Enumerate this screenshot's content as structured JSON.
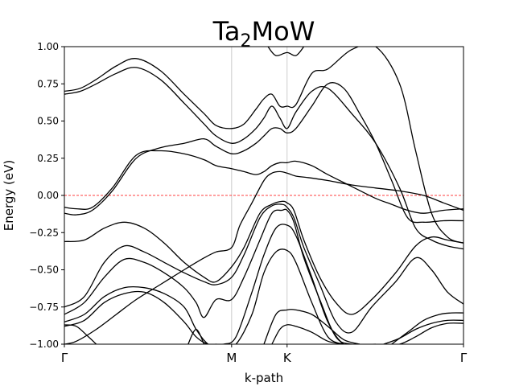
{
  "chart_data": {
    "type": "line",
    "title_main": "Ta",
    "title_sub": "2",
    "title_rest": "MoW",
    "xlabel": "k-path",
    "ylabel": "Energy (eV)",
    "ylim": [
      -1.0,
      1.0
    ],
    "yticks": [
      -1.0,
      -0.75,
      -0.5,
      -0.25,
      0.0,
      0.25,
      0.5,
      0.75,
      1.0
    ],
    "ytick_labels": [
      "−1.00",
      "−0.75",
      "−0.50",
      "−0.25",
      "0.00",
      "0.25",
      "0.50",
      "0.75",
      "1.00"
    ],
    "xlim": [
      0.0,
      1.0
    ],
    "high_symmetry_points": [
      {
        "label": "Γ",
        "x": 0.0
      },
      {
        "label": "M",
        "x": 0.419
      },
      {
        "label": "K",
        "x": 0.558
      },
      {
        "label": "Γ",
        "x": 1.0
      }
    ],
    "fermi_level": 0.0,
    "fermi_color": "#ff0000",
    "vline_color": "#cccccc",
    "band_color": "#000000",
    "series": [
      {
        "name": "band-1",
        "x": [
          0,
          0.03,
          0.08,
          0.13,
          0.18,
          0.24,
          0.3,
          0.35,
          0.38,
          0.419,
          0.44,
          0.47,
          0.5,
          0.52,
          0.54,
          0.558,
          0.58,
          0.61,
          0.66,
          0.72,
          0.78,
          0.84,
          0.9,
          0.95,
          1.0
        ],
        "y": [
          -1.0,
          -0.98,
          -0.9,
          -0.8,
          -0.7,
          -0.6,
          -0.5,
          -0.42,
          -0.38,
          -0.35,
          -0.2,
          -0.05,
          0.1,
          0.15,
          0.16,
          0.15,
          0.13,
          0.12,
          0.1,
          0.07,
          0.05,
          0.03,
          0.0,
          -0.05,
          -0.1
        ]
      },
      {
        "name": "band-2",
        "x": [
          0,
          0.03,
          0.07,
          0.12,
          0.18,
          0.24,
          0.3,
          0.35,
          0.38,
          0.419,
          0.45,
          0.48,
          0.5,
          0.52,
          0.54,
          0.558,
          0.58,
          0.62,
          0.66,
          0.72,
          0.78,
          0.82,
          0.86,
          0.9,
          0.95,
          1.0
        ],
        "y": [
          -0.08,
          -0.09,
          -0.08,
          0.05,
          0.27,
          0.3,
          0.28,
          0.24,
          0.2,
          0.18,
          0.16,
          0.14,
          0.16,
          0.2,
          0.22,
          0.22,
          0.23,
          0.2,
          0.14,
          0.06,
          -0.02,
          -0.06,
          -0.1,
          -0.12,
          -0.1,
          -0.09
        ]
      },
      {
        "name": "band-3",
        "x": [
          0,
          0.03,
          0.07,
          0.12,
          0.18,
          0.24,
          0.3,
          0.35,
          0.38,
          0.419,
          0.45,
          0.48,
          0.5,
          0.52,
          0.54,
          0.558,
          0.58,
          0.62,
          0.66,
          0.7,
          0.74,
          0.78,
          0.82,
          0.86,
          0.9,
          0.95,
          1.0
        ],
        "y": [
          -0.12,
          -0.13,
          -0.1,
          0.03,
          0.25,
          0.32,
          0.35,
          0.38,
          0.33,
          0.28,
          0.3,
          0.35,
          0.4,
          0.45,
          0.45,
          0.42,
          0.45,
          0.6,
          0.75,
          0.72,
          0.55,
          0.35,
          0.1,
          -0.15,
          -0.18,
          -0.17,
          -0.17
        ]
      },
      {
        "name": "band-4",
        "x": [
          0,
          0.04,
          0.08,
          0.13,
          0.18,
          0.24,
          0.3,
          0.35,
          0.38,
          0.419,
          0.45,
          0.48,
          0.5,
          0.52,
          0.54,
          0.558,
          0.58,
          0.62,
          0.66,
          0.72,
          0.78,
          0.84,
          0.88,
          0.92,
          0.96,
          1.0
        ],
        "y": [
          0.68,
          0.7,
          0.75,
          0.82,
          0.86,
          0.78,
          0.62,
          0.48,
          0.4,
          0.35,
          0.38,
          0.45,
          0.52,
          0.6,
          0.52,
          0.45,
          0.56,
          0.7,
          0.72,
          0.55,
          0.35,
          0.05,
          -0.22,
          -0.3,
          -0.34,
          -0.36
        ]
      },
      {
        "name": "band-5",
        "x": [
          0,
          0.04,
          0.08,
          0.13,
          0.18,
          0.24,
          0.3,
          0.35,
          0.38,
          0.419,
          0.45,
          0.48,
          0.5,
          0.52,
          0.54,
          0.558,
          0.58,
          0.62,
          0.66,
          0.72,
          0.78,
          0.84,
          0.88,
          0.92,
          0.96,
          1.0
        ],
        "y": [
          0.7,
          0.72,
          0.78,
          0.87,
          0.92,
          0.84,
          0.68,
          0.55,
          0.47,
          0.45,
          0.48,
          0.58,
          0.65,
          0.68,
          0.6,
          0.6,
          0.61,
          0.82,
          0.85,
          0.98,
          1.0,
          0.75,
          0.3,
          -0.12,
          -0.28,
          -0.32
        ]
      },
      {
        "name": "band-6",
        "x": [
          0,
          0.05,
          0.1,
          0.15,
          0.2,
          0.25,
          0.3,
          0.35,
          0.38,
          0.419,
          0.45,
          0.49,
          0.52,
          0.545,
          0.558,
          0.575,
          0.6,
          0.64,
          0.68,
          0.72,
          0.77,
          0.83,
          0.88,
          0.92,
          0.96,
          1.0
        ],
        "y": [
          -0.31,
          -0.3,
          -0.22,
          -0.18,
          -0.22,
          -0.32,
          -0.45,
          -0.55,
          -0.58,
          -0.48,
          -0.35,
          -0.12,
          -0.06,
          -0.04,
          -0.05,
          -0.1,
          -0.3,
          -0.55,
          -0.72,
          -0.8,
          -0.7,
          -0.52,
          -0.34,
          -0.28,
          -0.3,
          -0.32
        ]
      },
      {
        "name": "band-7",
        "x": [
          0,
          0.05,
          0.1,
          0.15,
          0.2,
          0.25,
          0.3,
          0.35,
          0.38,
          0.419,
          0.45,
          0.49,
          0.52,
          0.545,
          0.558,
          0.575,
          0.6,
          0.64,
          0.68,
          0.72,
          0.77,
          0.83,
          0.88,
          0.92,
          0.96,
          1.0
        ],
        "y": [
          -0.75,
          -0.68,
          -0.45,
          -0.34,
          -0.38,
          -0.45,
          -0.52,
          -0.58,
          -0.6,
          -0.55,
          -0.4,
          -0.15,
          -0.07,
          -0.06,
          -0.08,
          -0.15,
          -0.35,
          -0.6,
          -0.85,
          -0.92,
          -0.75,
          -0.58,
          -0.42,
          -0.5,
          -0.65,
          -0.73
        ]
      },
      {
        "name": "band-8",
        "x": [
          0,
          0.05,
          0.1,
          0.15,
          0.2,
          0.25,
          0.3,
          0.33,
          0.35,
          0.38,
          0.419,
          0.45,
          0.49,
          0.52,
          0.545,
          0.558,
          0.575,
          0.6,
          0.64,
          0.68,
          0.72,
          0.78
        ],
        "y": [
          -0.8,
          -0.72,
          -0.55,
          -0.43,
          -0.45,
          -0.52,
          -0.62,
          -0.72,
          -0.82,
          -0.7,
          -0.7,
          -0.55,
          -0.3,
          -0.12,
          -0.1,
          -0.1,
          -0.18,
          -0.42,
          -0.7,
          -0.95,
          -1.0,
          -1.0
        ]
      },
      {
        "name": "band-9",
        "x": [
          0,
          0.05,
          0.1,
          0.15,
          0.2,
          0.25,
          0.3,
          0.33,
          0.36,
          0.38,
          0.4,
          0.43,
          0.47,
          0.5,
          0.53,
          0.558,
          0.58,
          0.62,
          0.66,
          0.7,
          0.74
        ],
        "y": [
          -0.85,
          -0.8,
          -0.68,
          -0.62,
          -0.62,
          -0.66,
          -0.75,
          -0.9,
          -1.0,
          -1.0,
          -1.0,
          -0.95,
          -0.65,
          -0.4,
          -0.22,
          -0.2,
          -0.27,
          -0.55,
          -0.85,
          -1.0,
          -1.0
        ]
      },
      {
        "name": "band-10",
        "x": [
          0,
          0.05,
          0.1,
          0.15,
          0.2,
          0.25,
          0.3,
          0.33,
          0.36,
          0.4,
          0.43,
          0.47,
          0.5,
          0.53,
          0.558,
          0.58,
          0.62,
          0.66,
          0.7
        ],
        "y": [
          -0.88,
          -0.84,
          -0.72,
          -0.66,
          -0.65,
          -0.72,
          -0.85,
          -0.95,
          -1.0,
          -1.0,
          -1.0,
          -0.8,
          -0.52,
          -0.38,
          -0.37,
          -0.45,
          -0.72,
          -0.95,
          -1.0
        ]
      },
      {
        "name": "band-11",
        "x": [
          0.5,
          0.53,
          0.558,
          0.58,
          0.62,
          0.66,
          0.7,
          0.74
        ],
        "y": [
          -1.0,
          -0.8,
          -0.77,
          -0.77,
          -0.8,
          -0.88,
          -0.97,
          -1.0
        ]
      },
      {
        "name": "band-12",
        "x": [
          0.52,
          0.54,
          0.558,
          0.58,
          0.62,
          0.66,
          0.7
        ],
        "y": [
          -1.0,
          -0.9,
          -0.87,
          -0.88,
          -0.92,
          -0.98,
          -1.0
        ]
      },
      {
        "name": "band-13",
        "x": [
          0.82,
          0.86,
          0.9,
          0.94,
          0.97,
          1.0
        ],
        "y": [
          -1.0,
          -0.92,
          -0.84,
          -0.8,
          -0.79,
          -0.79
        ]
      },
      {
        "name": "band-14",
        "x": [
          0.8,
          0.84,
          0.88,
          0.92,
          0.96,
          1.0
        ],
        "y": [
          -1.0,
          -0.96,
          -0.9,
          -0.86,
          -0.84,
          -0.84
        ]
      },
      {
        "name": "band-15",
        "x": [
          0.8,
          0.84,
          0.88,
          0.92,
          0.96,
          1.0
        ],
        "y": [
          -1.0,
          -1.0,
          -0.95,
          -0.89,
          -0.86,
          -0.86
        ]
      },
      {
        "name": "band-16",
        "x": [
          0,
          0.03,
          0.06,
          0.08
        ],
        "y": [
          -0.87,
          -0.88,
          -0.95,
          -1.0
        ]
      },
      {
        "name": "band-17",
        "x": [
          0.31,
          0.33,
          0.35
        ],
        "y": [
          -1.0,
          -0.9,
          -1.0
        ]
      },
      {
        "name": "band-18",
        "x": [
          0.51,
          0.53,
          0.558,
          0.58,
          0.6
        ],
        "y": [
          1.0,
          0.94,
          0.96,
          0.94,
          1.0
        ]
      }
    ]
  }
}
